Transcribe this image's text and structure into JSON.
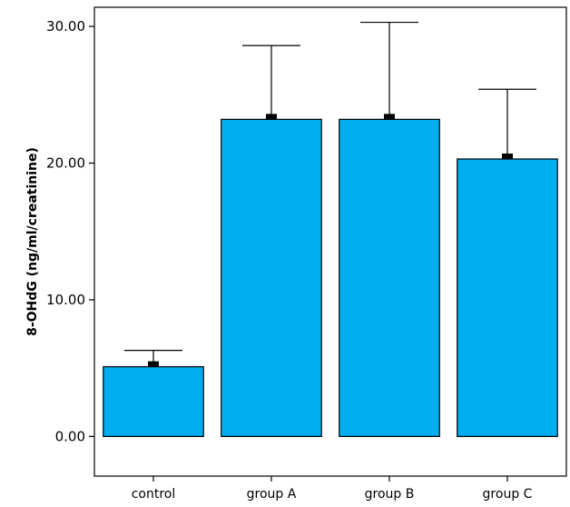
{
  "chart_data": {
    "type": "bar",
    "title": "",
    "xlabel": "",
    "ylabel": "8-OHdG (ng/ml/creatinine)",
    "categories": [
      "control",
      "group A",
      "group B",
      "group C"
    ],
    "values": [
      5.1,
      23.2,
      23.2,
      20.3
    ],
    "error_upper": [
      6.3,
      28.6,
      30.3,
      25.4
    ],
    "ylim": [
      -2.9,
      31.4
    ],
    "yticks": [
      0,
      10,
      20,
      30
    ],
    "ytick_labels": [
      "0.00",
      "10.00",
      "20.00",
      "30.00"
    ],
    "grid": false,
    "legend": "none",
    "colors": {
      "bar_fill": "#00adee",
      "bar_stroke": "#000000",
      "error_bar": "#000000",
      "axis": "#000000"
    }
  }
}
